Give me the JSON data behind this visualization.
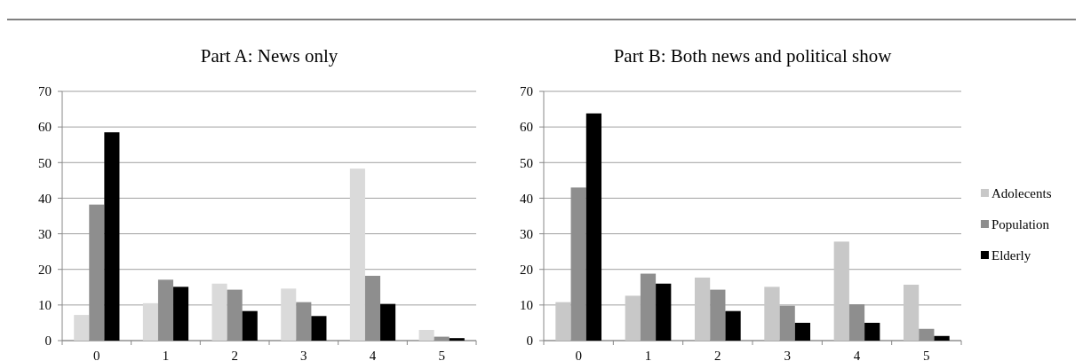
{
  "chart_data": [
    {
      "type": "bar",
      "title": "Part A: News only",
      "categories": [
        "0",
        "1",
        "2",
        "3",
        "4",
        "5"
      ],
      "series": [
        {
          "color": "#dadada",
          "values": [
            7.2,
            10.5,
            16,
            14.6,
            48.3,
            3
          ]
        },
        {
          "color": "#8e8e8e",
          "values": [
            38.2,
            17.1,
            14.3,
            10.8,
            18.2,
            1.1
          ]
        },
        {
          "color": "#000000",
          "values": [
            58.5,
            15.1,
            8.3,
            6.9,
            10.3,
            0.7
          ]
        }
      ],
      "ylim": [
        0,
        70
      ],
      "yticks": [
        0,
        10,
        20,
        30,
        40,
        50,
        60,
        70
      ],
      "grid": "y",
      "legend": false
    },
    {
      "type": "bar",
      "title": "Part B: Both news and political show",
      "categories": [
        "0",
        "1",
        "2",
        "3",
        "4",
        "5"
      ],
      "series": [
        {
          "name": "Adolecents",
          "color": "#c8c8c8",
          "values": [
            10.8,
            12.6,
            17.7,
            15.1,
            27.8,
            15.7
          ]
        },
        {
          "name": "Population",
          "color": "#8e8e8e",
          "values": [
            43,
            18.8,
            14.3,
            9.8,
            10.2,
            3.3
          ]
        },
        {
          "name": "Elderly",
          "color": "#000000",
          "values": [
            63.8,
            16,
            8.3,
            5,
            5,
            1.3
          ]
        }
      ],
      "ylim": [
        0,
        70
      ],
      "yticks": [
        0,
        10,
        20,
        30,
        40,
        50,
        60,
        70
      ],
      "grid": "y",
      "legend": "right"
    }
  ]
}
